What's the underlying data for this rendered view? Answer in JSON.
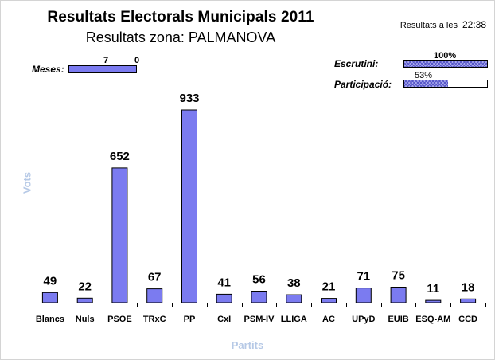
{
  "header": {
    "title": "Resultats Electorals Municipals 2011",
    "subtitle": "Resultats zona: PALMANOVA",
    "time_label": "Resultats a les",
    "time_value": "22:38"
  },
  "indicators": {
    "meses": {
      "label": "Meses:",
      "done": "7",
      "pending": "0",
      "fraction": 1.0
    },
    "escrutini": {
      "label": "Escrutini:",
      "value": "100%",
      "fraction": 1.0
    },
    "participacio": {
      "label": "Participació:",
      "value": "53%",
      "fraction": 0.53
    }
  },
  "colors": {
    "bar": "#7b7bf0",
    "axis_title": "#b6c9e6"
  },
  "chart_data": {
    "type": "bar",
    "title": "",
    "xlabel": "Partits",
    "ylabel": "Vots",
    "categories": [
      "Blancs",
      "Nuls",
      "PSOE",
      "TRxC",
      "PP",
      "CxI",
      "PSM-IV",
      "LLIGA",
      "AC",
      "UPyD",
      "EUIB",
      "ESQ-AM",
      "CCD"
    ],
    "values": [
      49,
      22,
      652,
      67,
      933,
      41,
      56,
      38,
      21,
      71,
      75,
      11,
      18
    ],
    "ylim": [
      0,
      933
    ],
    "grid": false,
    "legend": "none"
  }
}
